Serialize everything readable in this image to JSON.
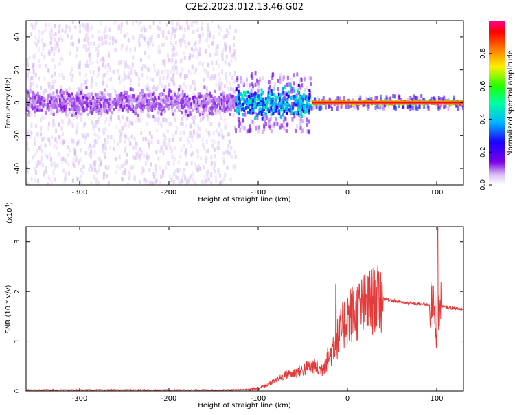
{
  "title": "C2E2.2023.012.13.46.G02",
  "colors": {
    "snr_line": "#e33b3b",
    "axis": "#000000",
    "background": "#ffffff"
  },
  "chart_data": [
    {
      "type": "heatmap",
      "title": "C2E2.2023.012.13.46.G02",
      "xlabel": "Height of straight line (km)",
      "ylabel": "Frequency (Hz)",
      "xlim": [
        -360,
        130
      ],
      "ylim": [
        -50,
        50
      ],
      "xticks": [
        -300,
        -200,
        -100,
        0,
        100
      ],
      "yticks": [
        -40,
        -20,
        0,
        20,
        40
      ],
      "colorbar": {
        "label": "Normalized spectral amplitude",
        "range": [
          0.0,
          1.0
        ],
        "ticks": [
          0.0,
          0.2,
          0.4,
          0.6,
          0.8
        ],
        "tick_labels": [
          "0.0",
          "0.2",
          "0.4",
          "0.6",
          "0.8"
        ],
        "colormap": "rainbow (white-purple-blue-cyan-green-yellow-red-magenta)"
      },
      "regions": [
        {
          "x_range": [
            -360,
            -125
          ],
          "freq_core_halfwidth": 10,
          "freq_scatter_halfwidth": 50,
          "amplitude": 0.12
        },
        {
          "x_range": [
            -125,
            -40
          ],
          "freq_core_halfwidth": 12,
          "freq_scatter_halfwidth": 18,
          "amplitude": 0.45
        },
        {
          "x_range": [
            -40,
            130
          ],
          "freq_core_halfwidth": 1,
          "freq_scatter_halfwidth": 4,
          "amplitude": 0.85
        }
      ]
    },
    {
      "type": "line",
      "xlabel": "Height of straight line (km)",
      "ylabel": "SNR (10 * v/v)",
      "y_multiplier_label": "(x10",
      "y_multiplier_exp": "4",
      "y_multiplier_close": ")",
      "xlim": [
        -360,
        130
      ],
      "ylim": [
        0,
        3.3
      ],
      "xticks": [
        -300,
        -200,
        -100,
        0,
        100
      ],
      "yticks": [
        0,
        1,
        2,
        3
      ],
      "series": [
        {
          "x": [
            -360,
            -300,
            -200,
            -130,
            -110,
            -100,
            -90,
            -80,
            -70,
            -60,
            -50,
            -40,
            -30,
            -20,
            -15,
            -10,
            -5,
            0,
            10,
            20,
            30,
            40,
            50,
            60,
            70,
            80,
            90,
            95,
            98,
            100,
            102,
            105,
            110,
            120,
            130
          ],
          "y": [
            0.02,
            0.02,
            0.02,
            0.02,
            0.03,
            0.06,
            0.12,
            0.22,
            0.32,
            0.36,
            0.42,
            0.5,
            0.42,
            0.7,
            0.95,
            1.1,
            1.3,
            1.5,
            1.6,
            1.72,
            1.8,
            1.86,
            1.82,
            1.78,
            1.76,
            1.75,
            1.74,
            1.7,
            1.65,
            1.2,
            1.65,
            1.7,
            1.68,
            1.66,
            1.64
          ]
        }
      ]
    }
  ]
}
